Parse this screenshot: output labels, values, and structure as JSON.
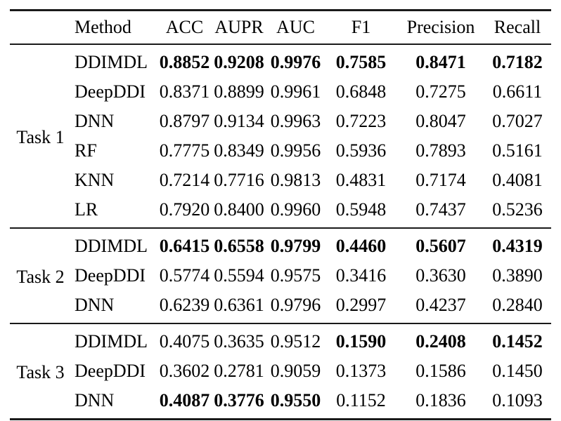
{
  "table": {
    "text_color": "#000000",
    "rule_color": "#1a1a1a",
    "columns": [
      "Method",
      "ACC",
      "AUPR",
      "AUC",
      "F1",
      "Precision",
      "Recall"
    ],
    "groups": [
      {
        "label": "Task 1",
        "rows": [
          {
            "method": "DDIMDL",
            "values": [
              "0.8852",
              "0.9208",
              "0.9976",
              "0.7585",
              "0.8471",
              "0.7182"
            ],
            "bold": [
              true,
              true,
              true,
              true,
              true,
              true
            ]
          },
          {
            "method": "DeepDDI",
            "values": [
              "0.8371",
              "0.8899",
              "0.9961",
              "0.6848",
              "0.7275",
              "0.6611"
            ],
            "bold": [
              false,
              false,
              false,
              false,
              false,
              false
            ]
          },
          {
            "method": "DNN",
            "values": [
              "0.8797",
              "0.9134",
              "0.9963",
              "0.7223",
              "0.8047",
              "0.7027"
            ],
            "bold": [
              false,
              false,
              false,
              false,
              false,
              false
            ]
          },
          {
            "method": "RF",
            "values": [
              "0.7775",
              "0.8349",
              "0.9956",
              "0.5936",
              "0.7893",
              "0.5161"
            ],
            "bold": [
              false,
              false,
              false,
              false,
              false,
              false
            ]
          },
          {
            "method": "KNN",
            "values": [
              "0.7214",
              "0.7716",
              "0.9813",
              "0.4831",
              "0.7174",
              "0.4081"
            ],
            "bold": [
              false,
              false,
              false,
              false,
              false,
              false
            ]
          },
          {
            "method": "LR",
            "values": [
              "0.7920",
              "0.8400",
              "0.9960",
              "0.5948",
              "0.7437",
              "0.5236"
            ],
            "bold": [
              false,
              false,
              false,
              false,
              false,
              false
            ]
          }
        ]
      },
      {
        "label": "Task 2",
        "rows": [
          {
            "method": "DDIMDL",
            "values": [
              "0.6415",
              "0.6558",
              "0.9799",
              "0.4460",
              "0.5607",
              "0.4319"
            ],
            "bold": [
              true,
              true,
              true,
              true,
              true,
              true
            ]
          },
          {
            "method": "DeepDDI",
            "values": [
              "0.5774",
              "0.5594",
              "0.9575",
              "0.3416",
              "0.3630",
              "0.3890"
            ],
            "bold": [
              false,
              false,
              false,
              false,
              false,
              false
            ]
          },
          {
            "method": "DNN",
            "values": [
              "0.6239",
              "0.6361",
              "0.9796",
              "0.2997",
              "0.4237",
              "0.2840"
            ],
            "bold": [
              false,
              false,
              false,
              false,
              false,
              false
            ]
          }
        ]
      },
      {
        "label": "Task 3",
        "rows": [
          {
            "method": "DDIMDL",
            "values": [
              "0.4075",
              "0.3635",
              "0.9512",
              "0.1590",
              "0.2408",
              "0.1452"
            ],
            "bold": [
              false,
              false,
              false,
              true,
              true,
              true
            ]
          },
          {
            "method": "DeepDDI",
            "values": [
              "0.3602",
              "0.2781",
              "0.9059",
              "0.1373",
              "0.1586",
              "0.1450"
            ],
            "bold": [
              false,
              false,
              false,
              false,
              false,
              false
            ]
          },
          {
            "method": "DNN",
            "values": [
              "0.4087",
              "0.3776",
              "0.9550",
              "0.1152",
              "0.1836",
              "0.1093"
            ],
            "bold": [
              true,
              true,
              true,
              false,
              false,
              false
            ]
          }
        ]
      }
    ]
  }
}
